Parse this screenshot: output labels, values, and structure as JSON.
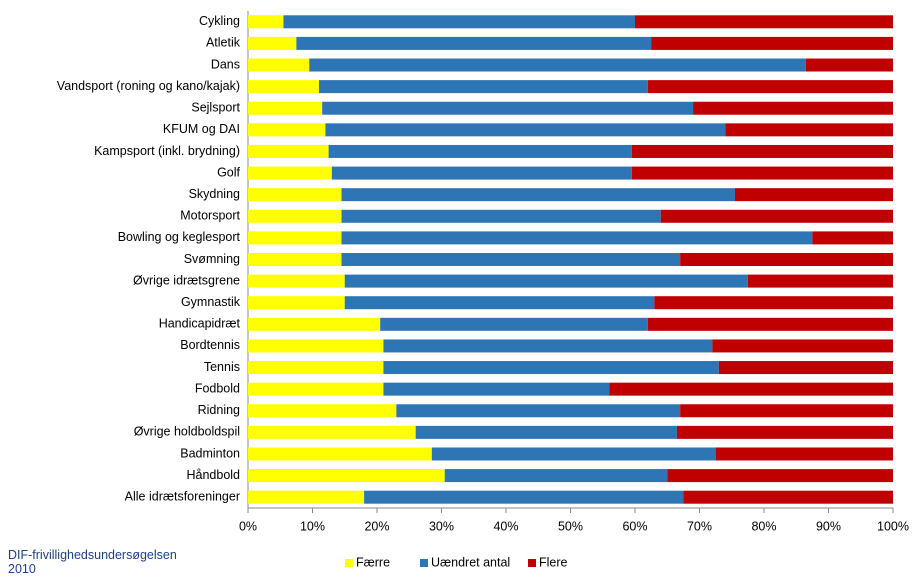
{
  "chart_data": {
    "type": "stacked-bar-horizontal",
    "categories": [
      "Cykling",
      "Atletik",
      "Dans",
      "Vandsport (roning og kano/kajak)",
      "Sejlsport",
      "KFUM og DAI",
      "Kampsport (inkl. brydning)",
      "Golf",
      "Skydning",
      "Motorsport",
      "Bowling og keglesport",
      "Svømning",
      "Øvrige idrætsgrene",
      "Gymnastik",
      "Handicapidræt",
      "Bordtennis",
      "Tennis",
      "Fodbold",
      "Ridning",
      "Øvrige holdboldspil",
      "Badminton",
      "Håndbold",
      "Alle idrætsforeninger"
    ],
    "series": [
      {
        "name": "Færre",
        "color": "#ffff00",
        "values": [
          5.5,
          7.5,
          9.5,
          11,
          11.5,
          12,
          12.5,
          13,
          14.5,
          14.5,
          14.5,
          14.5,
          15,
          15,
          20.5,
          21,
          21,
          21,
          23,
          26,
          28.5,
          30.5,
          18
        ]
      },
      {
        "name": "Uændret antal",
        "color": "#2e75b6",
        "values": [
          54.5,
          55,
          77,
          51,
          57.5,
          62,
          47,
          46.5,
          61,
          49.5,
          73,
          52.5,
          62.5,
          48,
          41.5,
          51,
          52,
          35,
          44,
          40.5,
          44,
          34.5,
          49.5
        ]
      },
      {
        "name": "Flere",
        "color": "#c00000",
        "values": [
          40,
          37.5,
          13.5,
          38,
          31,
          26,
          40.5,
          40.5,
          24.5,
          36,
          12.5,
          33,
          22.5,
          37,
          38,
          28,
          27,
          44,
          33,
          33.5,
          27.5,
          35,
          32.5
        ]
      }
    ],
    "xlim": [
      0,
      100
    ],
    "xticks": [
      {
        "value": 0,
        "label": "0%"
      },
      {
        "value": 10,
        "label": "10%"
      },
      {
        "value": 20,
        "label": "20%"
      },
      {
        "value": 30,
        "label": "30%"
      },
      {
        "value": 40,
        "label": "40%"
      },
      {
        "value": 50,
        "label": "50%"
      },
      {
        "value": 60,
        "label": "60%"
      },
      {
        "value": 70,
        "label": "70%"
      },
      {
        "value": 80,
        "label": "80%"
      },
      {
        "value": 90,
        "label": "90%"
      },
      {
        "value": 100,
        "label": "100%"
      }
    ],
    "source": "DIF-frivillighedsundersøgelsen 2010",
    "legend": "bottom"
  }
}
